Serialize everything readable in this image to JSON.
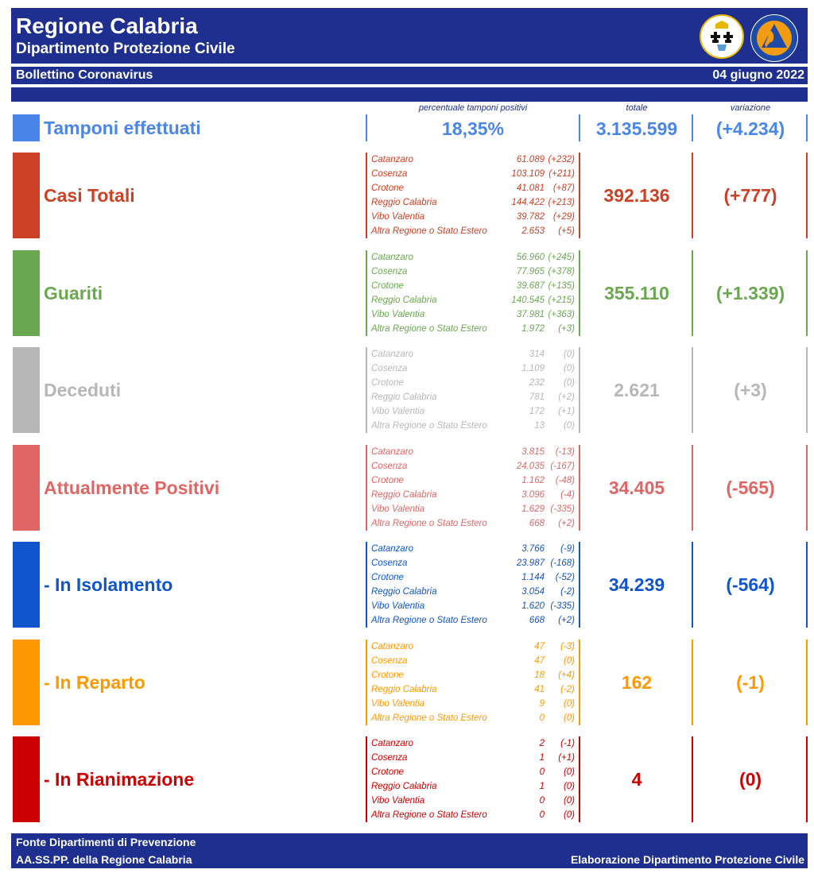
{
  "header": {
    "title": "Regione Calabria",
    "subtitle": "Dipartimento Protezione Civile",
    "bulletin": "Bollettino Coronavirus",
    "date": "04 giugno 2022",
    "logo_text": "PROTEZIONE CIVILE Regione Calabria"
  },
  "columns": {
    "percent": "percentuale tamponi positivi",
    "total": "totale",
    "variation": "variazione"
  },
  "tamponi": {
    "label": "Tamponi effettuati",
    "percent": "18,35%",
    "total": "3.135.599",
    "variation": "(+4.234)",
    "color": "#4a86e8"
  },
  "sections": [
    {
      "label": "Casi Totali",
      "color": "#cc4125",
      "total": "392.136",
      "variation": "(+777)",
      "rows": [
        [
          "Catanzaro",
          "61.089",
          "(+232)"
        ],
        [
          "Cosenza",
          "103.109",
          "(+211)"
        ],
        [
          "Crotone",
          "41.081",
          "(+87)"
        ],
        [
          "Reggio Calabria",
          "144.422",
          "(+213)"
        ],
        [
          "Vibo Valentia",
          "39.782",
          "(+29)"
        ],
        [
          "Altra Regione o Stato Estero",
          "2.653",
          "(+5)"
        ]
      ]
    },
    {
      "label": "Guariti",
      "color": "#6aa84f",
      "total": "355.110",
      "variation": "(+1.339)",
      "rows": [
        [
          "Catanzaro",
          "56.960",
          "(+245)"
        ],
        [
          "Cosenza",
          "77.965",
          "(+378)"
        ],
        [
          "Crotone",
          "39.687",
          "(+135)"
        ],
        [
          "Reggio Calabria",
          "140.545",
          "(+215)"
        ],
        [
          "Vibo Valentia",
          "37.981",
          "(+363)"
        ],
        [
          "Altra Regione o Stato Estero",
          "1.972",
          "(+3)"
        ]
      ]
    },
    {
      "label": "Deceduti",
      "color": "#b7b7b7",
      "total": "2.621",
      "variation": "(+3)",
      "rows": [
        [
          "Catanzaro",
          "314",
          "(0)"
        ],
        [
          "Cosenza",
          "1.109",
          "(0)"
        ],
        [
          "Crotone",
          "232",
          "(0)"
        ],
        [
          "Reggio Calabria",
          "781",
          "(+2)"
        ],
        [
          "Vibo Valentia",
          "172",
          "(+1)"
        ],
        [
          "Altra Regione o Stato Estero",
          "13",
          "(0)"
        ]
      ]
    },
    {
      "label": "Attualmente Positivi",
      "color": "#e06666",
      "total": "34.405",
      "variation": "(-565)",
      "rows": [
        [
          "Catanzaro",
          "3.815",
          "(-13)"
        ],
        [
          "Cosenza",
          "24.035",
          "(-167)"
        ],
        [
          "Crotone",
          "1.162",
          "(-48)"
        ],
        [
          "Reggio Calabria",
          "3.096",
          "(-4)"
        ],
        [
          "Vibo Valentia",
          "1.629",
          "(-335)"
        ],
        [
          "Altra Regione o Stato Estero",
          "668",
          "(+2)"
        ]
      ]
    },
    {
      "label": " - In Isolamento",
      "color": "#1155cc",
      "total": "34.239",
      "variation": "(-564)",
      "rows": [
        [
          "Catanzaro",
          "3.766",
          "(-9)"
        ],
        [
          "Cosenza",
          "23.987",
          "(-168)"
        ],
        [
          "Crotone",
          "1.144",
          "(-52)"
        ],
        [
          "Reggio Calabria",
          "3.054",
          "(-2)"
        ],
        [
          "Vibo Valentia",
          "1.620",
          "(-335)"
        ],
        [
          "Altra Regione o Stato Estero",
          "668",
          "(+2)"
        ]
      ]
    },
    {
      "label": " - In Reparto",
      "color": "#ff9900",
      "total": "162",
      "variation": "(-1)",
      "rows": [
        [
          "Catanzaro",
          "47",
          "(-3)"
        ],
        [
          "Cosenza",
          "47",
          "(0)"
        ],
        [
          "Crotone",
          "18",
          "(+4)"
        ],
        [
          "Reggio Calabria",
          "41",
          "(-2)"
        ],
        [
          "Vibo Valentia",
          "9",
          "(0)"
        ],
        [
          "Altra Regione o Stato Estero",
          "0",
          "(0)"
        ]
      ]
    },
    {
      "label": " - In Rianimazione",
      "color": "#cc0000",
      "total": "4",
      "variation": "(0)",
      "rows": [
        [
          "Catanzaro",
          "2",
          "(-1)"
        ],
        [
          "Cosenza",
          "1",
          "(+1)"
        ],
        [
          "Crotone",
          "0",
          "(0)"
        ],
        [
          "Reggio Calabria",
          "1",
          "(0)"
        ],
        [
          "Vibo Valentia",
          "0",
          "(0)"
        ],
        [
          "Altra Regione o Stato Estero",
          "0",
          "(0)"
        ]
      ]
    }
  ],
  "footer": {
    "line1": "Fonte Dipartimenti di Prevenzione",
    "line2": "AA.SS.PP.  della Regione Calabria",
    "right": "Elaborazione Dipartimento Protezione Civile"
  }
}
